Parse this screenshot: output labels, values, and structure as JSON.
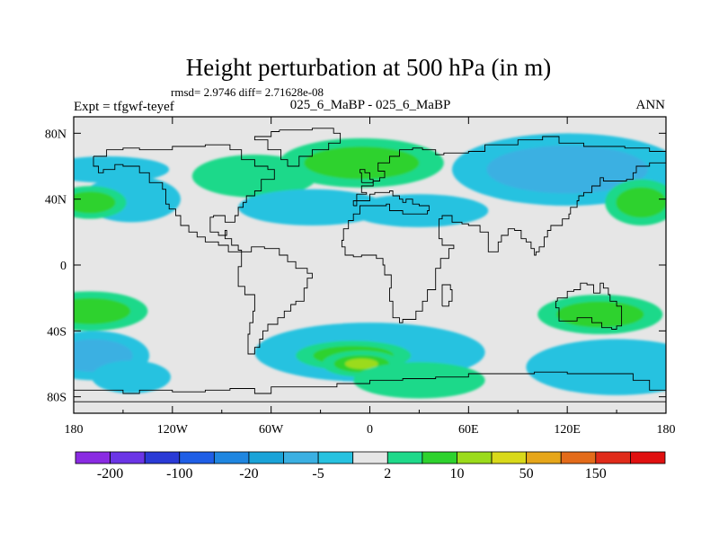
{
  "chart_data": {
    "type": "heatmap",
    "title": "Height perturbation at 500 hPa (in m)",
    "subtitle": "rmsd= 2.9746 diff= 2.71628e-08",
    "left_label": "Expt = tfgwf-teyef",
    "center_label": "025_6_MaBP - 025_6_MaBP",
    "right_label": "ANN",
    "xaxis": {
      "range": [
        -180,
        180
      ],
      "ticks": [
        -180,
        -120,
        -60,
        0,
        60,
        120,
        180
      ],
      "tick_labels": [
        "180",
        "120W",
        "60W",
        "0",
        "60E",
        "120E",
        "180"
      ]
    },
    "yaxis": {
      "range": [
        -90,
        90
      ],
      "ticks": [
        80,
        40,
        0,
        -40,
        -80
      ],
      "tick_labels": [
        "80N",
        "40N",
        "0",
        "40S",
        "80S"
      ]
    },
    "contour_levels": [
      -200,
      -150,
      -100,
      -50,
      -20,
      -10,
      -5,
      -2,
      2,
      5,
      10,
      20,
      50,
      100,
      150,
      200
    ],
    "colorbar_labels": [
      "-200",
      "-100",
      "-20",
      "-5",
      "2",
      "10",
      "50",
      "150"
    ],
    "colors": [
      "#8a2be2",
      "#6b35e6",
      "#2a3ad6",
      "#1f5ee6",
      "#1f86e0",
      "#1aa3d8",
      "#3bb0e2",
      "#27c2e0",
      "#e6e6e6",
      "#1fd98a",
      "#2ed22e",
      "#9bdb1b",
      "#d9d91a",
      "#e6a61a",
      "#e36b1a",
      "#e02b1a",
      "#e01010"
    ],
    "features": [
      {
        "lon": -160,
        "lat": 58,
        "value": -4
      },
      {
        "lon": -145,
        "lat": 40,
        "value": -3
      },
      {
        "lon": -170,
        "lat": 38,
        "value": 6
      },
      {
        "lon": -170,
        "lat": -28,
        "value": 5
      },
      {
        "lon": -168,
        "lat": -55,
        "value": -8
      },
      {
        "lon": -145,
        "lat": -68,
        "value": -3
      },
      {
        "lon": -70,
        "lat": 54,
        "value": 3
      },
      {
        "lon": -5,
        "lat": 62,
        "value": 8
      },
      {
        "lon": -35,
        "lat": 35,
        "value": -3
      },
      {
        "lon": 30,
        "lat": 33,
        "value": -3
      },
      {
        "lon": 120,
        "lat": 58,
        "value": -8
      },
      {
        "lon": 165,
        "lat": 38,
        "value": 8
      },
      {
        "lon": 140,
        "lat": -30,
        "value": 5
      },
      {
        "lon": 150,
        "lat": -62,
        "value": -5
      },
      {
        "lon": 0,
        "lat": -53,
        "value": -3
      },
      {
        "lon": -10,
        "lat": -55,
        "value": 7
      },
      {
        "lon": -5,
        "lat": -60,
        "value": 15
      },
      {
        "lon": 30,
        "lat": -70,
        "value": 4
      }
    ]
  }
}
